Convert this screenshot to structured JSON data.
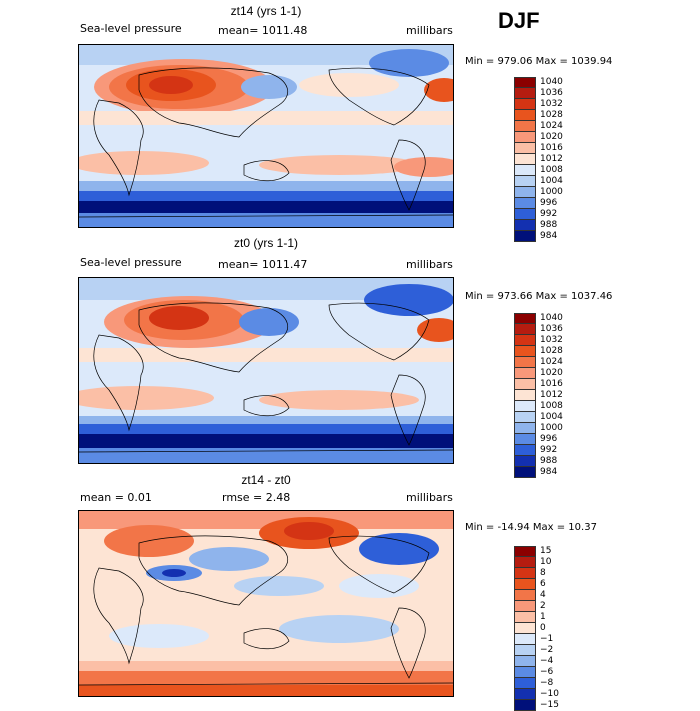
{
  "season": "DJF",
  "chart_data": [
    {
      "type": "heatmap",
      "title": "zt14 (yrs 1-1)",
      "variable": "Sea-level pressure",
      "mean_text": "mean= 1011.48",
      "units": "millibars",
      "stats_text": "Min = 979.06 Max = 1039.94",
      "min": 979.06,
      "max": 1039.94,
      "levels": [
        "1040",
        "1036",
        "1032",
        "1028",
        "1024",
        "1020",
        "1016",
        "1012",
        "1008",
        "1004",
        "1000",
        "996",
        "992",
        "988",
        "984"
      ],
      "colors": [
        "#8b0000",
        "#b51c10",
        "#d43414",
        "#e8541e",
        "#f27548",
        "#f8987a",
        "#fbbfa6",
        "#fde4d4",
        "#dce9fa",
        "#b8d2f3",
        "#8fb4ec",
        "#5b8be4",
        "#2e5fd8",
        "#1330b0",
        "#00107a"
      ]
    },
    {
      "type": "heatmap",
      "title": "zt0 (yrs 1-1)",
      "variable": "Sea-level pressure",
      "mean_text": "mean= 1011.47",
      "units": "millibars",
      "stats_text": "Min = 973.66 Max = 1037.46",
      "min": 973.66,
      "max": 1037.46,
      "levels": [
        "1040",
        "1036",
        "1032",
        "1028",
        "1024",
        "1020",
        "1016",
        "1012",
        "1008",
        "1004",
        "1000",
        "996",
        "992",
        "988",
        "984"
      ],
      "colors": [
        "#8b0000",
        "#b51c10",
        "#d43414",
        "#e8541e",
        "#f27548",
        "#f8987a",
        "#fbbfa6",
        "#fde4d4",
        "#dce9fa",
        "#b8d2f3",
        "#8fb4ec",
        "#5b8be4",
        "#2e5fd8",
        "#1330b0",
        "#00107a"
      ]
    },
    {
      "type": "heatmap",
      "title": "zt14 - zt0",
      "mean_text": "mean =    0.01",
      "rmse_text": "rmse =    2.48",
      "units": "millibars",
      "stats_text": "Min = -14.94 Max =   10.37",
      "min": -14.94,
      "max": 10.37,
      "levels": [
        "15",
        "10",
        "8",
        "6",
        "4",
        "2",
        "1",
        "0",
        "−1",
        "−2",
        "−4",
        "−6",
        "−8",
        "−10",
        "−15"
      ],
      "colors": [
        "#8b0000",
        "#b51c10",
        "#d43414",
        "#e8541e",
        "#f27548",
        "#f8987a",
        "#fbbfa6",
        "#fde4d4",
        "#dce9fa",
        "#b8d2f3",
        "#8fb4ec",
        "#5b8be4",
        "#2e5fd8",
        "#1330b0",
        "#00107a"
      ]
    }
  ]
}
